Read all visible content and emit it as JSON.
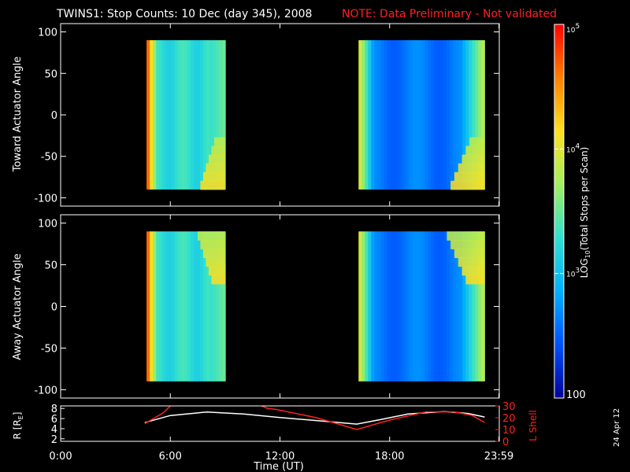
{
  "title": "TWINS1: Stop Counts: 10 Dec (day 345), 2008",
  "note": "NOTE: Data Preliminary - Not validated",
  "stamp": "24 Apr 12",
  "colorbar": {
    "label": "LOG10(Total Stops per Scan)",
    "label_parts": [
      "LOG",
      "10",
      "(Total Stops per Scan)"
    ],
    "ticks": [
      {
        "text_base": "10",
        "text_exp": "5",
        "value": 100000
      },
      {
        "text_base": "10",
        "text_exp": "4",
        "value": 10000
      },
      {
        "text_base": "10",
        "text_exp": "3",
        "value": 1000
      },
      {
        "text_plain": "100",
        "value": 100
      }
    ],
    "scale": "log",
    "range": [
      100,
      100000
    ],
    "colors": [
      "#00009a",
      "#0050ff",
      "#00b0ff",
      "#30e0d0",
      "#a0f060",
      "#ffe020",
      "#ff8000",
      "#ff0000"
    ]
  },
  "chart_data": [
    {
      "type": "heatmap",
      "ylabel": "Toward Actuator Angle",
      "ylim": [
        -110,
        110
      ],
      "yticks": [
        100,
        50,
        0,
        -50,
        -100
      ],
      "xlim": [
        0,
        24
      ],
      "data_blocks": [
        {
          "x": [
            4.7,
            9.0
          ],
          "y": [
            -90,
            90
          ],
          "level_start": 0.78,
          "level_mid": 0.42,
          "level_end": 0.5
        },
        {
          "x": [
            16.3,
            23.2
          ],
          "y": [
            -90,
            90
          ],
          "level_start": 0.55,
          "level_mid": 0.2,
          "level_end": 0.6
        }
      ]
    },
    {
      "type": "heatmap",
      "ylabel": "Away Actuator Angle",
      "ylim": [
        -110,
        110
      ],
      "yticks": [
        100,
        50,
        0,
        -50,
        -100
      ],
      "xlim": [
        0,
        24
      ],
      "data_blocks": [
        {
          "x": [
            4.7,
            9.0
          ],
          "y": [
            -90,
            90
          ],
          "level_start": 0.78,
          "level_mid": 0.42,
          "level_end": 0.5
        },
        {
          "x": [
            16.3,
            23.2
          ],
          "y": [
            -90,
            90
          ],
          "level_start": 0.55,
          "level_mid": 0.2,
          "level_end": 0.6
        }
      ]
    },
    {
      "type": "line",
      "xlabel": "Time (UT)",
      "xticks": [
        "0:00",
        "6:00",
        "12:00",
        "18:00",
        "23:59"
      ],
      "xtick_values": [
        0,
        6,
        12,
        18,
        23.98
      ],
      "ylabel_left": "R [RE]",
      "ylabel_left_parts": [
        "R [R",
        "E",
        "]"
      ],
      "ylim_left": [
        1.5,
        8.5
      ],
      "yticks_left": [
        "8",
        "6",
        "4",
        "2"
      ],
      "ytick_values_left": [
        8,
        6,
        4,
        2
      ],
      "ylabel_right": "L Shell",
      "ylim_right": [
        0,
        30
      ],
      "yticks_right": [
        "30",
        "20",
        "10",
        "0"
      ],
      "ytick_values_right": [
        30,
        20,
        10,
        0
      ],
      "series": [
        {
          "color": "#ffffff",
          "axis": "left",
          "x": [
            4.6,
            6.0,
            8.0,
            10.0,
            12.0,
            14.0,
            16.2,
            17.5,
            19.0,
            21.0,
            22.3,
            23.2
          ],
          "y": [
            5.2,
            6.6,
            7.3,
            6.9,
            6.2,
            5.6,
            4.9,
            5.8,
            6.9,
            7.4,
            7.0,
            6.3
          ]
        },
        {
          "color": "#ff2020",
          "axis": "right",
          "x": [
            4.6,
            5.6,
            6.0,
            6.1,
            11.0,
            11.3,
            11.8,
            14.0,
            16.2,
            18.0,
            20.0,
            21.5,
            22.5,
            23.2
          ],
          "y": [
            15.0,
            24.0,
            30.0,
            null,
            30.0,
            28.0,
            27.0,
            20.0,
            10.0,
            18.0,
            25.0,
            25.0,
            22.0,
            16.0
          ]
        }
      ]
    }
  ]
}
